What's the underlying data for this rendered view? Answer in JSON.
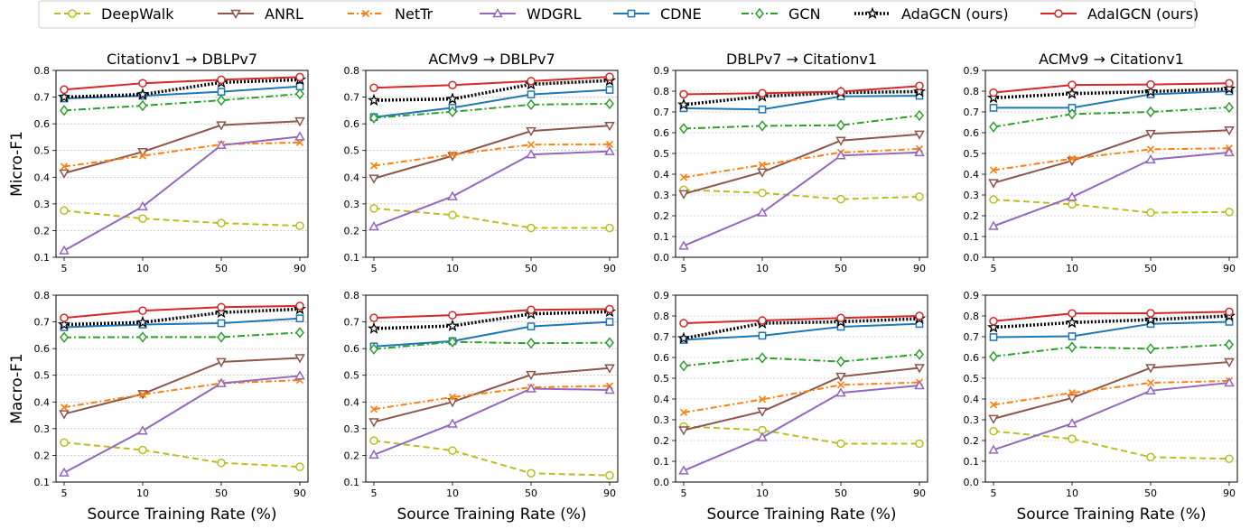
{
  "chart_data": {
    "type": "line",
    "categories": [
      "5",
      "10",
      "50",
      "90"
    ],
    "xlabel": "Source Training Rate (%)",
    "row_labels": [
      "Micro-F1",
      "Macro-F1"
    ],
    "column_titles": [
      "Citationv1 → DBLPv7",
      "ACMv9 → DBLPv7",
      "DBLPv7 → Citationv1",
      "ACMv9 → Citationv1"
    ],
    "legend": {
      "placement": "top",
      "entries": [
        "DeepWalk",
        "ANRL",
        "NetTr",
        "WDGRL",
        "CDNE",
        "GCN",
        "AdaGCN (ours)",
        "AdaIGCN (ours)"
      ]
    },
    "series_styles": [
      {
        "name": "DeepWalk",
        "color": "#bcbd22",
        "dash": "7,4",
        "marker": "circle"
      },
      {
        "name": "ANRL",
        "color": "#8c564b",
        "dash": "",
        "marker": "triangle-down"
      },
      {
        "name": "NetTr",
        "color": "#ff7f0e",
        "dash": "7,3,2,3",
        "marker": "x"
      },
      {
        "name": "WDGRL",
        "color": "#9467bd",
        "dash": "",
        "marker": "triangle-up"
      },
      {
        "name": "CDNE",
        "color": "#1f77b4",
        "dash": "",
        "marker": "square"
      },
      {
        "name": "GCN",
        "color": "#2ca02c",
        "dash": "8,3,2,3",
        "marker": "diamond"
      },
      {
        "name": "AdaGCN (ours)",
        "color": "#000000",
        "dash": "2,2",
        "marker": "star"
      },
      {
        "name": "AdaIGCN (ours)",
        "color": "#d62728",
        "dash": "",
        "marker": "circle"
      }
    ],
    "panels": [
      {
        "row": 0,
        "col": 0,
        "title": "Citationv1 → DBLPv7",
        "ylabel": "Micro-F1",
        "ylim": [
          0.1,
          0.8
        ],
        "yticks": [
          "0.1",
          "0.2",
          "0.3",
          "0.4",
          "0.5",
          "0.6",
          "0.7",
          "0.8"
        ],
        "grid": true,
        "series": [
          {
            "name": "DeepWalk",
            "values": [
              0.275,
              0.245,
              0.228,
              0.218
            ]
          },
          {
            "name": "ANRL",
            "values": [
              0.415,
              0.495,
              0.595,
              0.61
            ]
          },
          {
            "name": "NetTr",
            "values": [
              0.44,
              0.48,
              0.523,
              0.53
            ]
          },
          {
            "name": "WDGRL",
            "values": [
              0.125,
              0.29,
              0.52,
              0.552
            ]
          },
          {
            "name": "CDNE",
            "values": [
              0.695,
              0.705,
              0.72,
              0.74
            ]
          },
          {
            "name": "GCN",
            "values": [
              0.65,
              0.668,
              0.688,
              0.712
            ]
          },
          {
            "name": "AdaGCN (ours)",
            "values": [
              0.7,
              0.71,
              0.755,
              0.765
            ]
          },
          {
            "name": "AdaIGCN (ours)",
            "values": [
              0.728,
              0.752,
              0.765,
              0.775
            ]
          }
        ]
      },
      {
        "row": 0,
        "col": 1,
        "title": "ACMv9 → DBLPv7",
        "ylabel": "",
        "ylim": [
          0.1,
          0.8
        ],
        "yticks": [
          "0.1",
          "0.2",
          "0.3",
          "0.4",
          "0.5",
          "0.6",
          "0.7",
          "0.8"
        ],
        "grid": true,
        "series": [
          {
            "name": "DeepWalk",
            "values": [
              0.283,
              0.258,
              0.21,
              0.21
            ]
          },
          {
            "name": "ANRL",
            "values": [
              0.395,
              0.48,
              0.573,
              0.593
            ]
          },
          {
            "name": "NetTr",
            "values": [
              0.443,
              0.485,
              0.522,
              0.523
            ]
          },
          {
            "name": "WDGRL",
            "values": [
              0.215,
              0.328,
              0.485,
              0.497
            ]
          },
          {
            "name": "CDNE",
            "values": [
              0.625,
              0.66,
              0.71,
              0.727
            ]
          },
          {
            "name": "GCN",
            "values": [
              0.622,
              0.645,
              0.672,
              0.675
            ]
          },
          {
            "name": "AdaGCN (ours)",
            "values": [
              0.688,
              0.693,
              0.748,
              0.762
            ]
          },
          {
            "name": "AdaIGCN (ours)",
            "values": [
              0.735,
              0.745,
              0.76,
              0.776
            ]
          }
        ]
      },
      {
        "row": 0,
        "col": 2,
        "title": "DBLPv7 → Citationv1",
        "ylabel": "",
        "ylim": [
          0.0,
          0.9
        ],
        "yticks": [
          "0.0",
          "0.1",
          "0.2",
          "0.3",
          "0.4",
          "0.5",
          "0.6",
          "0.7",
          "0.8",
          "0.9"
        ],
        "grid": true,
        "series": [
          {
            "name": "DeepWalk",
            "values": [
              0.325,
              0.31,
              0.28,
              0.292
            ]
          },
          {
            "name": "ANRL",
            "values": [
              0.305,
              0.41,
              0.562,
              0.592
            ]
          },
          {
            "name": "NetTr",
            "values": [
              0.385,
              0.445,
              0.505,
              0.522
            ]
          },
          {
            "name": "WDGRL",
            "values": [
              0.055,
              0.215,
              0.49,
              0.505
            ]
          },
          {
            "name": "CDNE",
            "values": [
              0.718,
              0.712,
              0.775,
              0.778
            ]
          },
          {
            "name": "GCN",
            "values": [
              0.62,
              0.633,
              0.636,
              0.683
            ]
          },
          {
            "name": "AdaGCN (ours)",
            "values": [
              0.735,
              0.775,
              0.793,
              0.798
            ]
          },
          {
            "name": "AdaIGCN (ours)",
            "values": [
              0.785,
              0.79,
              0.798,
              0.825
            ]
          }
        ]
      },
      {
        "row": 0,
        "col": 3,
        "title": "ACMv9 → Citationv1",
        "ylabel": "",
        "ylim": [
          0.0,
          0.9
        ],
        "yticks": [
          "0.0",
          "0.1",
          "0.2",
          "0.3",
          "0.4",
          "0.5",
          "0.6",
          "0.7",
          "0.8",
          "0.9"
        ],
        "grid": true,
        "series": [
          {
            "name": "DeepWalk",
            "values": [
              0.278,
              0.255,
              0.215,
              0.218
            ]
          },
          {
            "name": "ANRL",
            "values": [
              0.358,
              0.465,
              0.595,
              0.612
            ]
          },
          {
            "name": "NetTr",
            "values": [
              0.42,
              0.475,
              0.52,
              0.525
            ]
          },
          {
            "name": "WDGRL",
            "values": [
              0.15,
              0.29,
              0.47,
              0.505
            ]
          },
          {
            "name": "CDNE",
            "values": [
              0.72,
              0.72,
              0.785,
              0.8
            ]
          },
          {
            "name": "GCN",
            "values": [
              0.628,
              0.69,
              0.7,
              0.722
            ]
          },
          {
            "name": "AdaGCN (ours)",
            "values": [
              0.768,
              0.788,
              0.798,
              0.812
            ]
          },
          {
            "name": "AdaIGCN (ours)",
            "values": [
              0.793,
              0.83,
              0.832,
              0.838
            ]
          }
        ]
      },
      {
        "row": 1,
        "col": 0,
        "title": "",
        "ylabel": "Macro-F1",
        "ylim": [
          0.1,
          0.8
        ],
        "yticks": [
          "0.1",
          "0.2",
          "0.3",
          "0.4",
          "0.5",
          "0.6",
          "0.7",
          "0.8"
        ],
        "grid": true,
        "series": [
          {
            "name": "DeepWalk",
            "values": [
              0.248,
              0.22,
              0.172,
              0.157
            ]
          },
          {
            "name": "ANRL",
            "values": [
              0.355,
              0.43,
              0.55,
              0.565
            ]
          },
          {
            "name": "NetTr",
            "values": [
              0.38,
              0.428,
              0.47,
              0.482
            ]
          },
          {
            "name": "WDGRL",
            "values": [
              0.135,
              0.292,
              0.47,
              0.498
            ]
          },
          {
            "name": "CDNE",
            "values": [
              0.68,
              0.69,
              0.695,
              0.713
            ]
          },
          {
            "name": "GCN",
            "values": [
              0.642,
              0.643,
              0.643,
              0.66
            ]
          },
          {
            "name": "AdaGCN (ours)",
            "values": [
              0.69,
              0.698,
              0.735,
              0.748
            ]
          },
          {
            "name": "AdaIGCN (ours)",
            "values": [
              0.715,
              0.742,
              0.755,
              0.76
            ]
          }
        ]
      },
      {
        "row": 1,
        "col": 1,
        "title": "",
        "ylabel": "",
        "ylim": [
          0.1,
          0.8
        ],
        "yticks": [
          "0.1",
          "0.2",
          "0.3",
          "0.4",
          "0.5",
          "0.6",
          "0.7",
          "0.8"
        ],
        "grid": true,
        "series": [
          {
            "name": "DeepWalk",
            "values": [
              0.255,
              0.218,
              0.133,
              0.125
            ]
          },
          {
            "name": "ANRL",
            "values": [
              0.325,
              0.4,
              0.502,
              0.527
            ]
          },
          {
            "name": "NetTr",
            "values": [
              0.373,
              0.418,
              0.455,
              0.46
            ]
          },
          {
            "name": "WDGRL",
            "values": [
              0.202,
              0.318,
              0.45,
              0.445
            ]
          },
          {
            "name": "CDNE",
            "values": [
              0.608,
              0.628,
              0.683,
              0.7
            ]
          },
          {
            "name": "GCN",
            "values": [
              0.598,
              0.625,
              0.62,
              0.622
            ]
          },
          {
            "name": "AdaGCN (ours)",
            "values": [
              0.675,
              0.685,
              0.73,
              0.738
            ]
          },
          {
            "name": "AdaIGCN (ours)",
            "values": [
              0.715,
              0.725,
              0.745,
              0.748
            ]
          }
        ]
      },
      {
        "row": 1,
        "col": 2,
        "title": "",
        "ylabel": "",
        "ylim": [
          0.0,
          0.9
        ],
        "yticks": [
          "0.0",
          "0.1",
          "0.2",
          "0.3",
          "0.4",
          "0.5",
          "0.6",
          "0.7",
          "0.8",
          "0.9"
        ],
        "grid": true,
        "series": [
          {
            "name": "DeepWalk",
            "values": [
              0.268,
              0.25,
              0.185,
              0.185
            ]
          },
          {
            "name": "ANRL",
            "values": [
              0.25,
              0.34,
              0.508,
              0.55
            ]
          },
          {
            "name": "NetTr",
            "values": [
              0.335,
              0.398,
              0.468,
              0.48
            ]
          },
          {
            "name": "WDGRL",
            "values": [
              0.055,
              0.215,
              0.43,
              0.465
            ]
          },
          {
            "name": "CDNE",
            "values": [
              0.685,
              0.705,
              0.748,
              0.762
            ]
          },
          {
            "name": "GCN",
            "values": [
              0.56,
              0.598,
              0.58,
              0.615
            ]
          },
          {
            "name": "AdaGCN (ours)",
            "values": [
              0.692,
              0.765,
              0.772,
              0.787
            ]
          },
          {
            "name": "AdaIGCN (ours)",
            "values": [
              0.765,
              0.778,
              0.79,
              0.8
            ]
          }
        ]
      },
      {
        "row": 1,
        "col": 3,
        "title": "",
        "ylabel": "",
        "ylim": [
          0.0,
          0.9
        ],
        "yticks": [
          "0.0",
          "0.1",
          "0.2",
          "0.3",
          "0.4",
          "0.5",
          "0.6",
          "0.7",
          "0.8",
          "0.9"
        ],
        "grid": true,
        "series": [
          {
            "name": "DeepWalk",
            "values": [
              0.245,
              0.208,
              0.12,
              0.112
            ]
          },
          {
            "name": "ANRL",
            "values": [
              0.305,
              0.405,
              0.55,
              0.578
            ]
          },
          {
            "name": "NetTr",
            "values": [
              0.372,
              0.43,
              0.478,
              0.487
            ]
          },
          {
            "name": "WDGRL",
            "values": [
              0.155,
              0.282,
              0.44,
              0.478
            ]
          },
          {
            "name": "CDNE",
            "values": [
              0.698,
              0.702,
              0.762,
              0.772
            ]
          },
          {
            "name": "GCN",
            "values": [
              0.605,
              0.65,
              0.642,
              0.662
            ]
          },
          {
            "name": "AdaGCN (ours)",
            "values": [
              0.745,
              0.768,
              0.782,
              0.8
            ]
          },
          {
            "name": "AdaIGCN (ours)",
            "values": [
              0.775,
              0.812,
              0.813,
              0.82
            ]
          }
        ]
      }
    ]
  }
}
